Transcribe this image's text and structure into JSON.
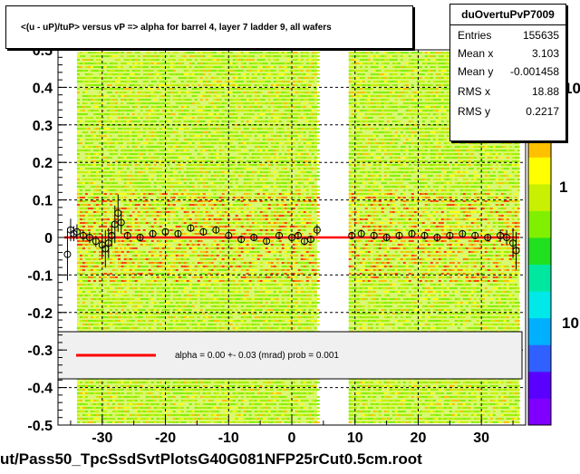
{
  "title": "<(u - uP)/tuP> versus   vP => alpha for barrel 4, layer 7 ladder 9, all wafers",
  "stats": {
    "name": "duOvertuPvP7009",
    "rows": [
      {
        "key": "Entries",
        "value": "155635"
      },
      {
        "key": "Mean x",
        "value": "3.103"
      },
      {
        "key": "Mean y",
        "value": "-0.001458"
      },
      {
        "key": "RMS x",
        "value": "18.88"
      },
      {
        "key": "RMS y",
        "value": "0.2217"
      }
    ]
  },
  "fit_label": "alpha =    0.00 +-  0.03 (mrad) prob = 0.001",
  "footer": "ut/Pass50_TpcSsdSvtPlotsG40G081NFP25rCut0.5cm.root",
  "colors": {
    "fit_line": "#ff0000",
    "palette": [
      "#7f00ff",
      "#5a00ff",
      "#3060ff",
      "#00b0ff",
      "#00e8e8",
      "#00e8a0",
      "#20e020",
      "#80f000",
      "#c8f000",
      "#ffff00",
      "#ffc000",
      "#ff8000",
      "#ff4000",
      "#e00000"
    ]
  },
  "chart_data": {
    "type": "scatter",
    "title": "<(u - uP)/tuP> versus   vP => alpha for barrel 4, layer 7 ladder 9, all wafers",
    "xlabel": "",
    "ylabel": "",
    "xlim": [
      -37,
      37
    ],
    "ylim": [
      -0.5,
      0.5
    ],
    "grid": true,
    "x_ticks": [
      -30,
      -20,
      -10,
      0,
      10,
      20,
      30
    ],
    "y_ticks": [
      -0.5,
      -0.4,
      -0.3,
      -0.2,
      -0.1,
      0,
      0.1,
      0.2,
      0.3,
      0.4
    ],
    "y_tick_labels": [
      "-0.5",
      "-0.4",
      "-0.3",
      "-0.2",
      "-0.1",
      "0",
      "0.1",
      "0.2",
      "0.3",
      "0.4"
    ],
    "top_partial_tick_label": "0.5",
    "colorbar": {
      "scale": "log",
      "tick_labels": [
        "10",
        "1"
      ],
      "partial_top_label": "10"
    },
    "density_bands": [
      {
        "x": [
          -34,
          -27
        ]
      },
      {
        "x": [
          -27,
          4
        ]
      },
      {
        "x": [
          9,
          36
        ]
      }
    ],
    "fit": {
      "type": "line",
      "y": 0.0,
      "x_range": [
        -36,
        36
      ]
    },
    "profile_points": [
      {
        "x": -35.5,
        "y": -0.045,
        "err": 0.07
      },
      {
        "x": -35,
        "y": 0.02,
        "err": 0.03
      },
      {
        "x": -34.5,
        "y": 0.01,
        "err": 0.02
      },
      {
        "x": -34,
        "y": 0.015,
        "err": 0.02
      },
      {
        "x": -33,
        "y": 0.005,
        "err": 0.015
      },
      {
        "x": -32,
        "y": 0.0,
        "err": 0.015
      },
      {
        "x": -31,
        "y": -0.01,
        "err": 0.015
      },
      {
        "x": -30,
        "y": -0.02,
        "err": 0.03
      },
      {
        "x": -29.5,
        "y": -0.03,
        "err": 0.05
      },
      {
        "x": -29,
        "y": -0.015,
        "err": 0.04
      },
      {
        "x": -28.5,
        "y": 0.005,
        "err": 0.03
      },
      {
        "x": -28,
        "y": 0.035,
        "err": 0.05
      },
      {
        "x": -27.5,
        "y": 0.065,
        "err": 0.05
      },
      {
        "x": -27,
        "y": 0.04,
        "err": 0.03
      },
      {
        "x": -26,
        "y": 0.005,
        "err": 0.01
      },
      {
        "x": -24,
        "y": 0.0,
        "err": 0.01
      },
      {
        "x": -22,
        "y": 0.01,
        "err": 0.01
      },
      {
        "x": -20,
        "y": 0.015,
        "err": 0.01
      },
      {
        "x": -18,
        "y": 0.01,
        "err": 0.01
      },
      {
        "x": -16,
        "y": 0.025,
        "err": 0.01
      },
      {
        "x": -14,
        "y": 0.015,
        "err": 0.01
      },
      {
        "x": -12,
        "y": 0.02,
        "err": 0.01
      },
      {
        "x": -10,
        "y": 0.005,
        "err": 0.01
      },
      {
        "x": -8,
        "y": -0.005,
        "err": 0.01
      },
      {
        "x": -6,
        "y": 0.0,
        "err": 0.01
      },
      {
        "x": -4,
        "y": -0.01,
        "err": 0.01
      },
      {
        "x": -2,
        "y": 0.005,
        "err": 0.01
      },
      {
        "x": 0,
        "y": 0.0,
        "err": 0.01
      },
      {
        "x": 1,
        "y": 0.005,
        "err": 0.01
      },
      {
        "x": 2,
        "y": -0.01,
        "err": 0.01
      },
      {
        "x": 3,
        "y": -0.005,
        "err": 0.01
      },
      {
        "x": 4,
        "y": 0.02,
        "err": 0.015
      },
      {
        "x": 9.5,
        "y": 0.005,
        "err": 0.01
      },
      {
        "x": 11,
        "y": 0.01,
        "err": 0.01
      },
      {
        "x": 13,
        "y": 0.005,
        "err": 0.01
      },
      {
        "x": 15,
        "y": 0.0,
        "err": 0.01
      },
      {
        "x": 17,
        "y": 0.005,
        "err": 0.01
      },
      {
        "x": 19,
        "y": 0.01,
        "err": 0.01
      },
      {
        "x": 21,
        "y": 0.005,
        "err": 0.01
      },
      {
        "x": 23,
        "y": 0.0,
        "err": 0.01
      },
      {
        "x": 25,
        "y": 0.005,
        "err": 0.01
      },
      {
        "x": 27,
        "y": 0.01,
        "err": 0.01
      },
      {
        "x": 29,
        "y": 0.005,
        "err": 0.01
      },
      {
        "x": 31,
        "y": 0.0,
        "err": 0.01
      },
      {
        "x": 33,
        "y": 0.005,
        "err": 0.015
      },
      {
        "x": 34,
        "y": 0.0,
        "err": 0.02
      },
      {
        "x": 35,
        "y": -0.015,
        "err": 0.04
      },
      {
        "x": 35.5,
        "y": -0.035,
        "err": 0.05
      }
    ]
  }
}
